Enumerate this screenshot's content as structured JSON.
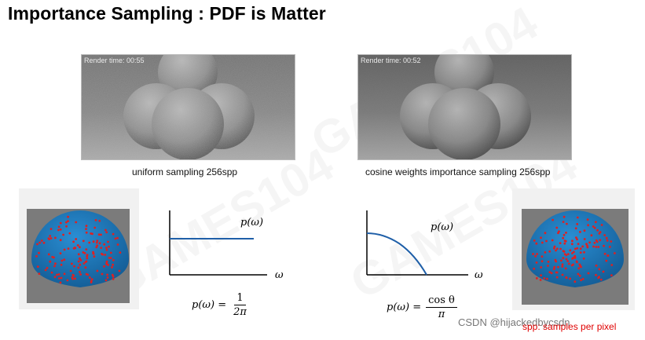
{
  "title": "Importance Sampling : PDF is Matter",
  "left": {
    "render_time": "Render time: 00:55",
    "caption": "uniform sampling 256spp",
    "graph_label": "p(ω)",
    "axis_label": "ω",
    "formula_lhs": "p(ω) =",
    "formula_num": "1",
    "formula_den": "2π"
  },
  "right": {
    "render_time": "Render time: 00:52",
    "caption": "cosine weights importance sampling 256spp",
    "graph_label": "p(ω)",
    "axis_label": "ω",
    "formula_lhs": "p(ω) =",
    "formula_num": "cos θ",
    "formula_den": "π"
  },
  "footer": {
    "csdn": "CSDN @hijackedbycsdn",
    "spp_note": "spp: samples per pixel"
  },
  "colors": {
    "curve": "#1f5fa8",
    "sphere": "#1e7fc4",
    "dots": "#e02020",
    "note": "#e00000"
  }
}
